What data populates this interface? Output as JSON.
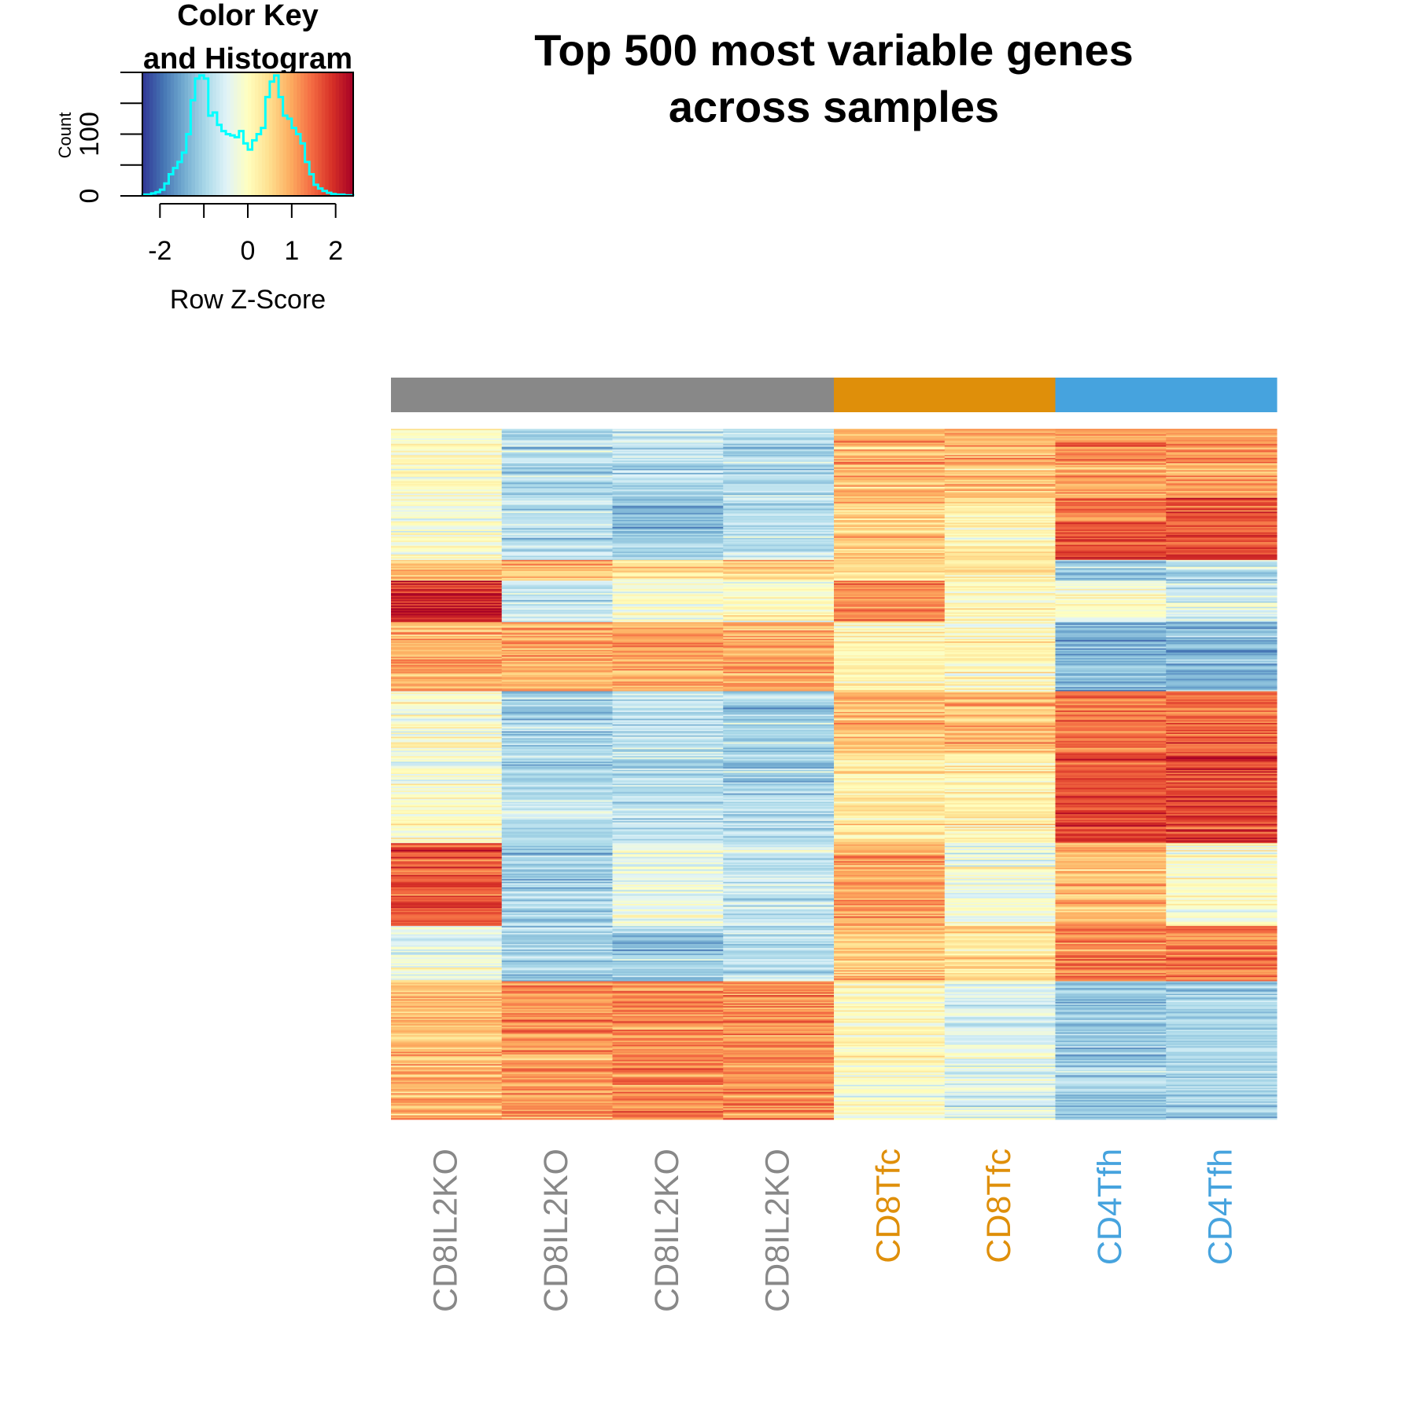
{
  "colors": {
    "ramp": [
      "#313695",
      "#4575b4",
      "#74add1",
      "#abd9e9",
      "#e0f3f8",
      "#ffffbf",
      "#fee090",
      "#fdae61",
      "#f46d43",
      "#d73027",
      "#a50026"
    ],
    "histogram_line": "#00ffff",
    "group_colors": {
      "CD8IL2KO": "#888888",
      "CD8Tfc": "#df8f0a",
      "CD4Tfh": "#46a3de"
    }
  },
  "chart_data": [
    {
      "type": "heatmap",
      "title_lines": [
        "Top 500 most variable genes",
        "across samples"
      ],
      "columns": [
        "CD8IL2KO",
        "CD8IL2KO",
        "CD8IL2KO",
        "CD8IL2KO",
        "CD8Tfc",
        "CD8Tfc",
        "CD4Tfh",
        "CD4Tfh"
      ],
      "column_groups": [
        "CD8IL2KO",
        "CD8IL2KO",
        "CD8IL2KO",
        "CD8IL2KO",
        "CD8Tfc",
        "CD8Tfc",
        "CD4Tfh",
        "CD4Tfh"
      ],
      "row_count": 500,
      "zlim": [
        -2.4,
        2.4
      ],
      "blocks": [
        {
          "rows": 50,
          "z": [
            0.0,
            -0.9,
            -0.8,
            -0.9,
            0.9,
            0.9,
            1.1,
            1.1
          ]
        },
        {
          "rows": 45,
          "z": [
            -0.2,
            -0.8,
            -1.1,
            -0.8,
            0.6,
            0.3,
            1.5,
            1.7
          ]
        },
        {
          "rows": 15,
          "z": [
            0.8,
            0.7,
            0.3,
            0.5,
            0.4,
            0.3,
            -1.2,
            -1.0
          ]
        },
        {
          "rows": 30,
          "z": [
            2.0,
            -0.8,
            -0.2,
            -0.1,
            1.2,
            0.1,
            -0.2,
            -0.6
          ]
        },
        {
          "rows": 50,
          "z": [
            0.9,
            0.9,
            1.0,
            1.0,
            0.1,
            0.0,
            -1.3,
            -1.3
          ]
        },
        {
          "rows": 45,
          "z": [
            -0.1,
            -1.0,
            -0.8,
            -1.1,
            0.8,
            0.8,
            1.4,
            1.4
          ]
        },
        {
          "rows": 65,
          "z": [
            -0.1,
            -0.8,
            -0.8,
            -1.0,
            0.3,
            0.2,
            1.7,
            1.8
          ]
        },
        {
          "rows": 60,
          "z": [
            1.6,
            -1.0,
            -0.3,
            -0.7,
            1.0,
            -0.2,
            0.8,
            0.0
          ]
        },
        {
          "rows": 40,
          "z": [
            -0.3,
            -1.0,
            -1.1,
            -0.8,
            0.7,
            0.5,
            1.3,
            1.4
          ]
        },
        {
          "rows": 100,
          "z": [
            0.8,
            1.1,
            1.2,
            1.2,
            0.0,
            -0.5,
            -1.1,
            -1.0
          ]
        }
      ]
    },
    {
      "type": "histogram",
      "title_lines": [
        "Color Key",
        "and Histogram"
      ],
      "xlabel": "Row Z-Score",
      "ylabel": "Count",
      "x_ticks": [
        "-2",
        "0",
        "1",
        "2"
      ],
      "x_tick_values": [
        -2,
        0,
        1,
        2
      ],
      "y_tick_labels": [
        "0",
        "100"
      ],
      "y_tick_label_values": [
        0,
        100
      ],
      "y_minor_ticks": [
        0,
        50,
        100,
        150,
        200
      ],
      "xlim": [
        -2.4,
        2.4
      ],
      "ylim": [
        0,
        200
      ],
      "bin_edges": [
        -2.4,
        -2.3,
        -2.2,
        -2.1,
        -2.0,
        -1.9,
        -1.8,
        -1.7,
        -1.6,
        -1.5,
        -1.4,
        -1.3,
        -1.2,
        -1.1,
        -1.0,
        -0.9,
        -0.8,
        -0.7,
        -0.6,
        -0.5,
        -0.4,
        -0.3,
        -0.2,
        -0.1,
        0.0,
        0.1,
        0.2,
        0.3,
        0.4,
        0.5,
        0.6,
        0.7,
        0.8,
        0.9,
        1.0,
        1.1,
        1.2,
        1.3,
        1.4,
        1.5,
        1.6,
        1.7,
        1.8,
        1.9,
        2.0,
        2.1,
        2.2,
        2.3,
        2.4
      ],
      "counts": [
        2,
        2,
        4,
        6,
        10,
        20,
        35,
        45,
        55,
        70,
        100,
        155,
        190,
        195,
        190,
        130,
        135,
        115,
        105,
        100,
        98,
        95,
        105,
        85,
        75,
        90,
        100,
        110,
        160,
        185,
        195,
        160,
        130,
        125,
        110,
        100,
        85,
        55,
        35,
        18,
        12,
        8,
        5,
        3,
        2,
        2,
        1,
        1
      ]
    }
  ]
}
